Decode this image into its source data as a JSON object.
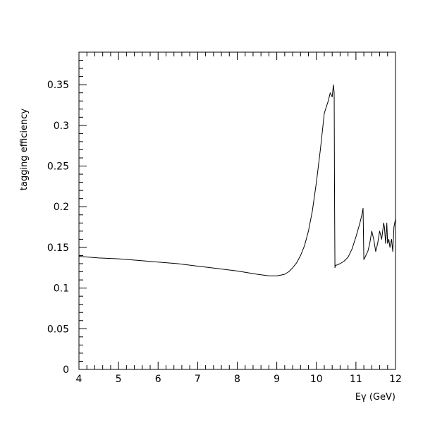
{
  "chart_data": {
    "type": "line",
    "title": "",
    "xlabel": "Eγ (GeV)",
    "ylabel": "tagging efficiency",
    "xlim": [
      4,
      12
    ],
    "ylim": [
      0,
      0.39
    ],
    "grid": false,
    "legend": "none",
    "x_ticks": [
      4,
      5,
      6,
      7,
      8,
      9,
      10,
      11,
      12
    ],
    "x_tick_labels": [
      "4",
      "5",
      "6",
      "7",
      "8",
      "9",
      "10",
      "11",
      "12"
    ],
    "y_ticks": [
      0,
      0.05,
      0.1,
      0.15,
      0.2,
      0.25,
      0.3,
      0.35
    ],
    "y_tick_labels": [
      "0",
      "0.05",
      "0.1",
      "0.15",
      "0.2",
      "0.25",
      "0.3",
      "0.35"
    ],
    "line_color": "#000000",
    "series": [
      {
        "x": [
          4.0,
          4.5,
          5.0,
          5.5,
          6.0,
          6.5,
          7.0,
          7.5,
          8.0,
          8.5,
          8.8,
          9.0,
          9.1,
          9.2,
          9.3,
          9.4,
          9.5,
          9.6,
          9.7,
          9.8,
          9.9,
          10.0,
          10.1,
          10.2,
          10.3,
          10.35,
          10.4,
          10.43,
          10.45,
          10.46,
          10.47,
          10.48,
          10.5,
          10.6,
          10.7,
          10.8,
          10.9,
          11.0,
          11.1,
          11.15,
          11.18,
          11.2,
          11.25,
          11.3,
          11.35,
          11.4,
          11.45,
          11.5,
          11.55,
          11.6,
          11.65,
          11.7,
          11.72,
          11.75,
          11.78,
          11.8,
          11.83,
          11.86,
          11.9,
          11.93,
          11.96,
          12.0
        ],
        "y": [
          0.139,
          0.137,
          0.136,
          0.134,
          0.132,
          0.13,
          0.127,
          0.124,
          0.121,
          0.117,
          0.115,
          0.115,
          0.116,
          0.117,
          0.12,
          0.125,
          0.131,
          0.14,
          0.152,
          0.17,
          0.195,
          0.23,
          0.27,
          0.315,
          0.33,
          0.34,
          0.335,
          0.35,
          0.34,
          0.2,
          0.125,
          0.128,
          0.128,
          0.13,
          0.133,
          0.138,
          0.148,
          0.163,
          0.18,
          0.19,
          0.198,
          0.135,
          0.14,
          0.145,
          0.155,
          0.17,
          0.16,
          0.145,
          0.155,
          0.17,
          0.16,
          0.18,
          0.175,
          0.155,
          0.18,
          0.155,
          0.16,
          0.15,
          0.16,
          0.145,
          0.175,
          0.185
        ]
      }
    ]
  }
}
